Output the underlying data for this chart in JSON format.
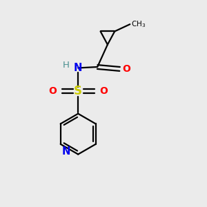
{
  "background_color": "#ebebeb",
  "atom_colors": {
    "C": "#000000",
    "H": "#4a9090",
    "N": "#0000ee",
    "O": "#ff0000",
    "S": "#cccc00"
  },
  "figsize": [
    3.0,
    3.0
  ],
  "dpi": 100,
  "bond_lw": 1.6
}
